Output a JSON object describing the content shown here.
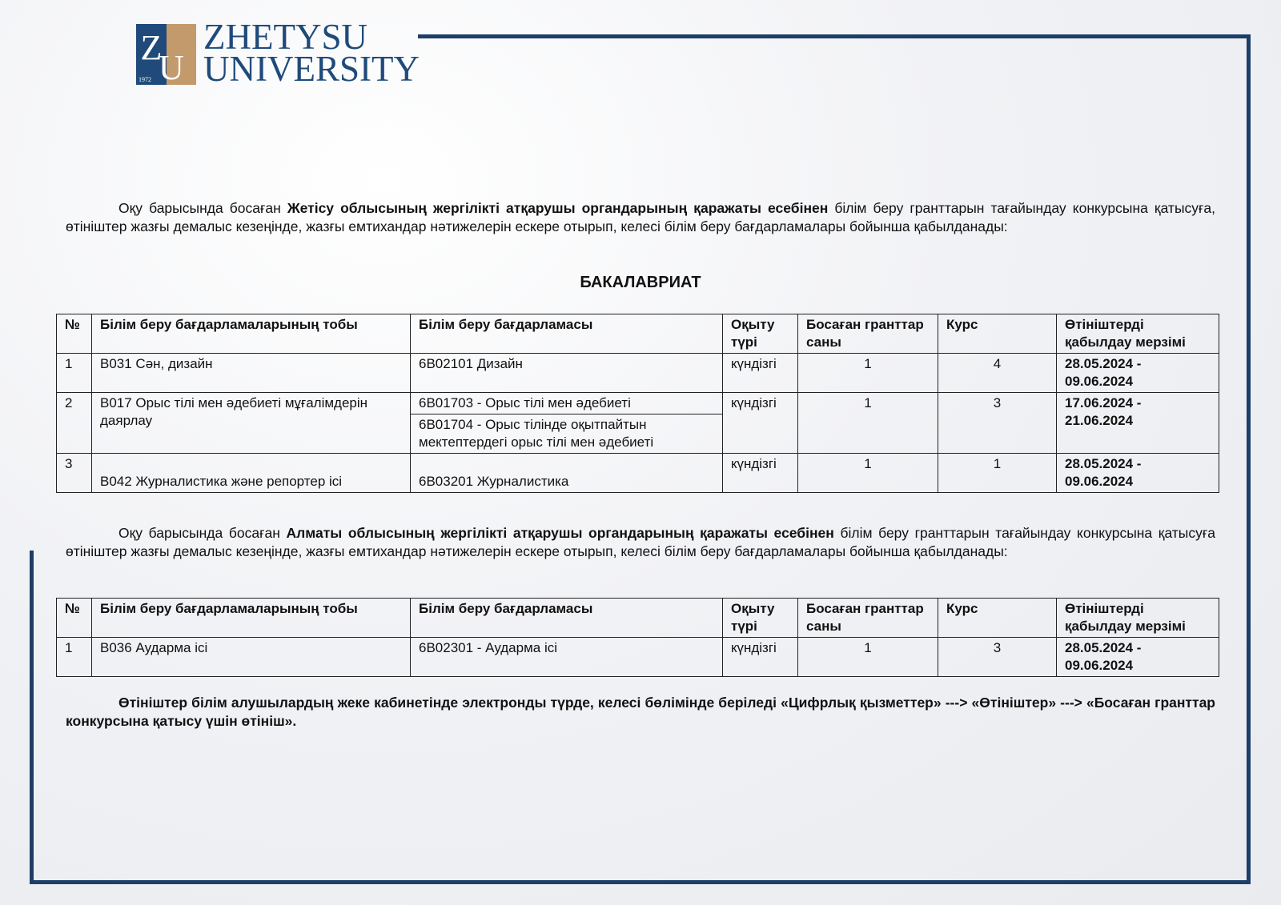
{
  "logo": {
    "letters_left": "Z",
    "letters_right": "U",
    "year": "1972",
    "line1": "ZHETYSU",
    "line2": "UNIVERSITY"
  },
  "colors": {
    "frame": "#1d3e67",
    "logo_blue": "#1f4a7a",
    "logo_gold": "#c39a6b"
  },
  "para1": {
    "a": "Оқу барысында босаған ",
    "bold": "Жетісу облысының жергілікті атқарушы органдарының  қаражаты есебінен",
    "b": "  білім беру гранттарын тағайындау конкурсына қатысуға, өтініштер жазғы демалыс кезеңінде, жазғы емтихандар нәтижелерін ескере отырып, келесі білім беру бағдарламалары бойынша қабылданады:"
  },
  "section_title": "БАКАЛАВРИАТ",
  "headers": [
    "№",
    "Білім беру бағдарламаларының тобы",
    "Білім беру бағдарламасы",
    "Оқыту түрі",
    "Босаған гранттар саны",
    "Курс",
    "Өтініштерді қабылдау мерзімі"
  ],
  "table1": [
    {
      "no": "1",
      "group": "B031 Сән, дизайн",
      "programs": [
        "6B02101 Дизайн"
      ],
      "form": "күндізгі",
      "grants": "1",
      "course": "4",
      "period": "28.05.2024 - 09.06.2024"
    },
    {
      "no": "2",
      "group": "B017 Орыс тілі мен әдебиеті мұғалімдерін даярлау",
      "programs": [
        "6B01703 - Орыс тілі мен әдебиеті",
        "6B01704 - Орыс тілінде оқытпайтын мектептердегі орыс тілі мен әдебиеті"
      ],
      "form": "күндізгі",
      "grants": "1",
      "course": "3",
      "period": "17.06.2024 - 21.06.2024"
    },
    {
      "no": "3",
      "group": "B042 Журналистика және репортер ісі",
      "programs": [
        "6B03201 Журналистика"
      ],
      "form": "күндізгі",
      "grants": "1",
      "course": "1",
      "period": "28.05.2024 - 09.06.2024"
    }
  ],
  "para2": {
    "a": "Оқу барысында босаған ",
    "bold": "Алматы облысының жергілікті атқарушы органдарының  қаражаты есебінен",
    "b": "  білім беру гранттарын тағайындау конкурсына қатысуға өтініштер жазғы демалыс кезеңінде, жазғы емтихандар нәтижелерін ескере отырып, келесі білім беру бағдарламалары бойынша қабылданады:"
  },
  "table2": [
    {
      "no": "1",
      "group": "B036 Аударма ісі",
      "program": "6B02301 - Аударма ісі",
      "form": "күндізгі",
      "grants": "1",
      "course": "3",
      "period": "28.05.2024 - 09.06.2024"
    }
  ],
  "footer_note": "Өтініштер білім алушылардың жеке кабинетінде электронды түрде, келесі бөлімінде беріледі «Цифрлық қызметтер» ---> «Өтініштер» ---> «Босаған гранттар конкурсына қатысу үшін өтініш»."
}
